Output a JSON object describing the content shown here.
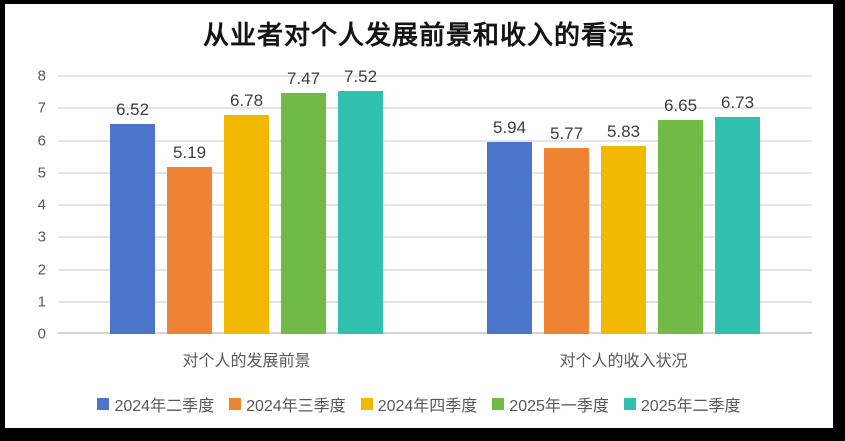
{
  "chart_data": {
    "type": "bar",
    "title": "从业者对个人发展前景和收入的看法",
    "categories": [
      "对个人的发展前景",
      "对个人的收入状况"
    ],
    "series": [
      {
        "name": "2024年二季度",
        "color": "#4A75C8",
        "values": [
          6.52,
          5.94
        ]
      },
      {
        "name": "2024年三季度",
        "color": "#ED8333",
        "values": [
          5.19,
          5.77
        ]
      },
      {
        "name": "2024年四季度",
        "color": "#F0B900",
        "values": [
          6.78,
          5.83
        ]
      },
      {
        "name": "2025年一季度",
        "color": "#71BA46",
        "values": [
          7.47,
          6.65
        ]
      },
      {
        "name": "2025年二季度",
        "color": "#31BFAE",
        "values": [
          7.52,
          6.73
        ]
      }
    ],
    "ylim": [
      0,
      8
    ],
    "yticks": [
      0,
      1,
      2,
      3,
      4,
      5,
      6,
      7,
      8
    ],
    "grid": true,
    "legend_position": "bottom",
    "data_labels": true,
    "value_decimals": 2
  },
  "styles": {
    "grid_color": "#e4e4e4",
    "axis_line_color": "#d4d4d4",
    "tick_label_color": "#595959",
    "data_label_color": "#3d3d3d",
    "title_color": "#141414",
    "frame_border_color": "#000000",
    "background": "#ffffff"
  }
}
